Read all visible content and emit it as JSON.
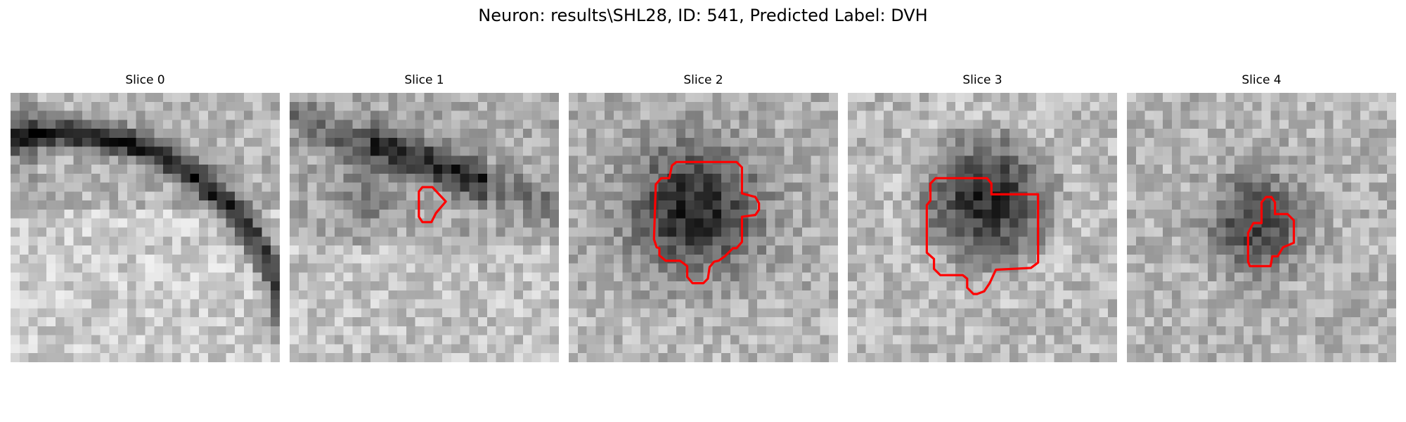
{
  "figure": {
    "title": "Neuron: results\\SHL28, ID: 541, Predicted Label: DVH",
    "contour_color": "#ff0000"
  },
  "panels": [
    {
      "title": "Slice 0"
    },
    {
      "title": "Slice 1"
    },
    {
      "title": "Slice 2"
    },
    {
      "title": "Slice 3"
    },
    {
      "title": "Slice 4"
    }
  ]
}
